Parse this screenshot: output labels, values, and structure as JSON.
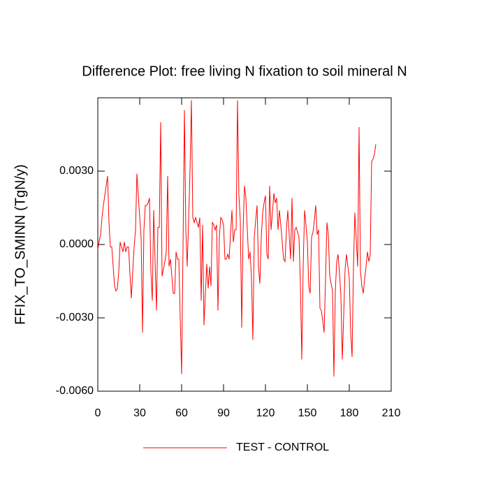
{
  "chart_data": {
    "type": "line",
    "title": "Difference Plot: free living N fixation to soil mineral N",
    "y_label": "FFIX_TO_SMINN  (TgN/y)",
    "xlim": [
      0,
      210
    ],
    "xticks": [
      0,
      30,
      60,
      90,
      120,
      150,
      180,
      210
    ],
    "ylim": [
      -0.006,
      0.006
    ],
    "yticks": [
      {
        "value": -0.006,
        "label": "-0.0060"
      },
      {
        "value": -0.003,
        "label": "-0.0030"
      },
      {
        "value": 0,
        "label": "0.0000"
      },
      {
        "value": 0.003,
        "label": "0.0030"
      }
    ],
    "series": [
      {
        "name": "TEST - CONTROL",
        "color": "#ff0000",
        "values": [
          -0.0002,
          0.00015,
          0.0004,
          0.0011,
          0.0016,
          0.002,
          0.0024,
          0.0028,
          0.0009,
          -0.0001,
          -0.0001,
          -0.0009,
          -0.0017,
          -0.0019,
          -0.0018,
          -0.0011,
          0.0001,
          -0.0001,
          -0.0003,
          0.0001,
          -0.0003,
          -0.0001,
          -0.0001,
          -0.0012,
          -0.0022,
          -0.0011,
          -0.0001,
          0.0006,
          0.0029,
          0.002,
          0.0011,
          0.0003,
          -0.0036,
          0.0006,
          0.0016,
          0.0016,
          0.0017,
          0.0019,
          -0.0011,
          -0.0023,
          0.0014,
          -0.0007,
          -0.0027,
          0.0007,
          0.0007,
          0.005,
          -0.0013,
          -0.001,
          -0.0007,
          -0.0003,
          0.0028,
          -0.0009,
          -0.0006,
          -0.0013,
          -0.002,
          -0.002,
          -0.0003,
          -0.0006,
          -0.0006,
          -0.003,
          -0.0053,
          -0.0001,
          0.0055,
          0.0006,
          -0.0009,
          0.001,
          0.003,
          0.0059,
          0.0011,
          0.0009,
          0.0011,
          0.0009,
          0.0007,
          0.0011,
          -0.0023,
          0.0008,
          -0.0033,
          -0.002,
          -0.0008,
          -0.0018,
          -0.0009,
          -0.0017,
          0.0009,
          0.0008,
          0.0006,
          0.0008,
          -0.0027,
          0.0003,
          0.0011,
          0.001,
          0.0008,
          -0.0006,
          -0.0006,
          -0.0004,
          -0.0006,
          0.0004,
          0.0014,
          0.0001,
          0.0006,
          0.0006,
          0.0059,
          0.002,
          0.001,
          -0.0034,
          0.0006,
          0.0024,
          0.0019,
          0.0006,
          -0.0006,
          -0.0003,
          -0.0014,
          -0.0039,
          0.0003,
          0.001,
          0.0016,
          -0.0009,
          -0.0016,
          0.0003,
          0.0013,
          0.0017,
          0.002,
          -0.0004,
          -0.0006,
          0.0024,
          0.0006,
          0.0013,
          0.0021,
          0.0017,
          0.0019,
          0.0006,
          0.0014,
          0.0008,
          0.0001,
          -0.0006,
          -0.0007,
          0.0006,
          0.0014,
          0.0004,
          -0.0006,
          0.0019,
          -0.0007,
          0.0006,
          0.0007,
          0.0005,
          0.0003,
          -0.0016,
          -0.0047,
          -0.0009,
          0.0014,
          0.0008,
          0.0001,
          -0.0017,
          -0.002,
          0.0003,
          0.0005,
          0.001,
          0.0016,
          0.0004,
          0.0006,
          -0.0026,
          -0.0027,
          -0.0031,
          -0.0036,
          -0.0014,
          0.0009,
          0.0004,
          -0.0013,
          -0.0016,
          -0.0019,
          -0.0054,
          -0.0019,
          -0.0007,
          -0.0004,
          -0.0012,
          -0.0021,
          -0.0047,
          -0.0029,
          -0.001,
          -0.0004,
          -0.0009,
          -0.0014,
          -0.0036,
          -0.0046,
          -0.0009,
          0.0013,
          0.0002,
          -0.0009,
          0.0048,
          -0.0011,
          -0.0017,
          -0.002,
          -0.0014,
          -0.0009,
          -0.0003,
          -0.0007,
          -0.0004,
          0.0034,
          0.0035,
          0.0037,
          0.0041
        ]
      }
    ]
  }
}
